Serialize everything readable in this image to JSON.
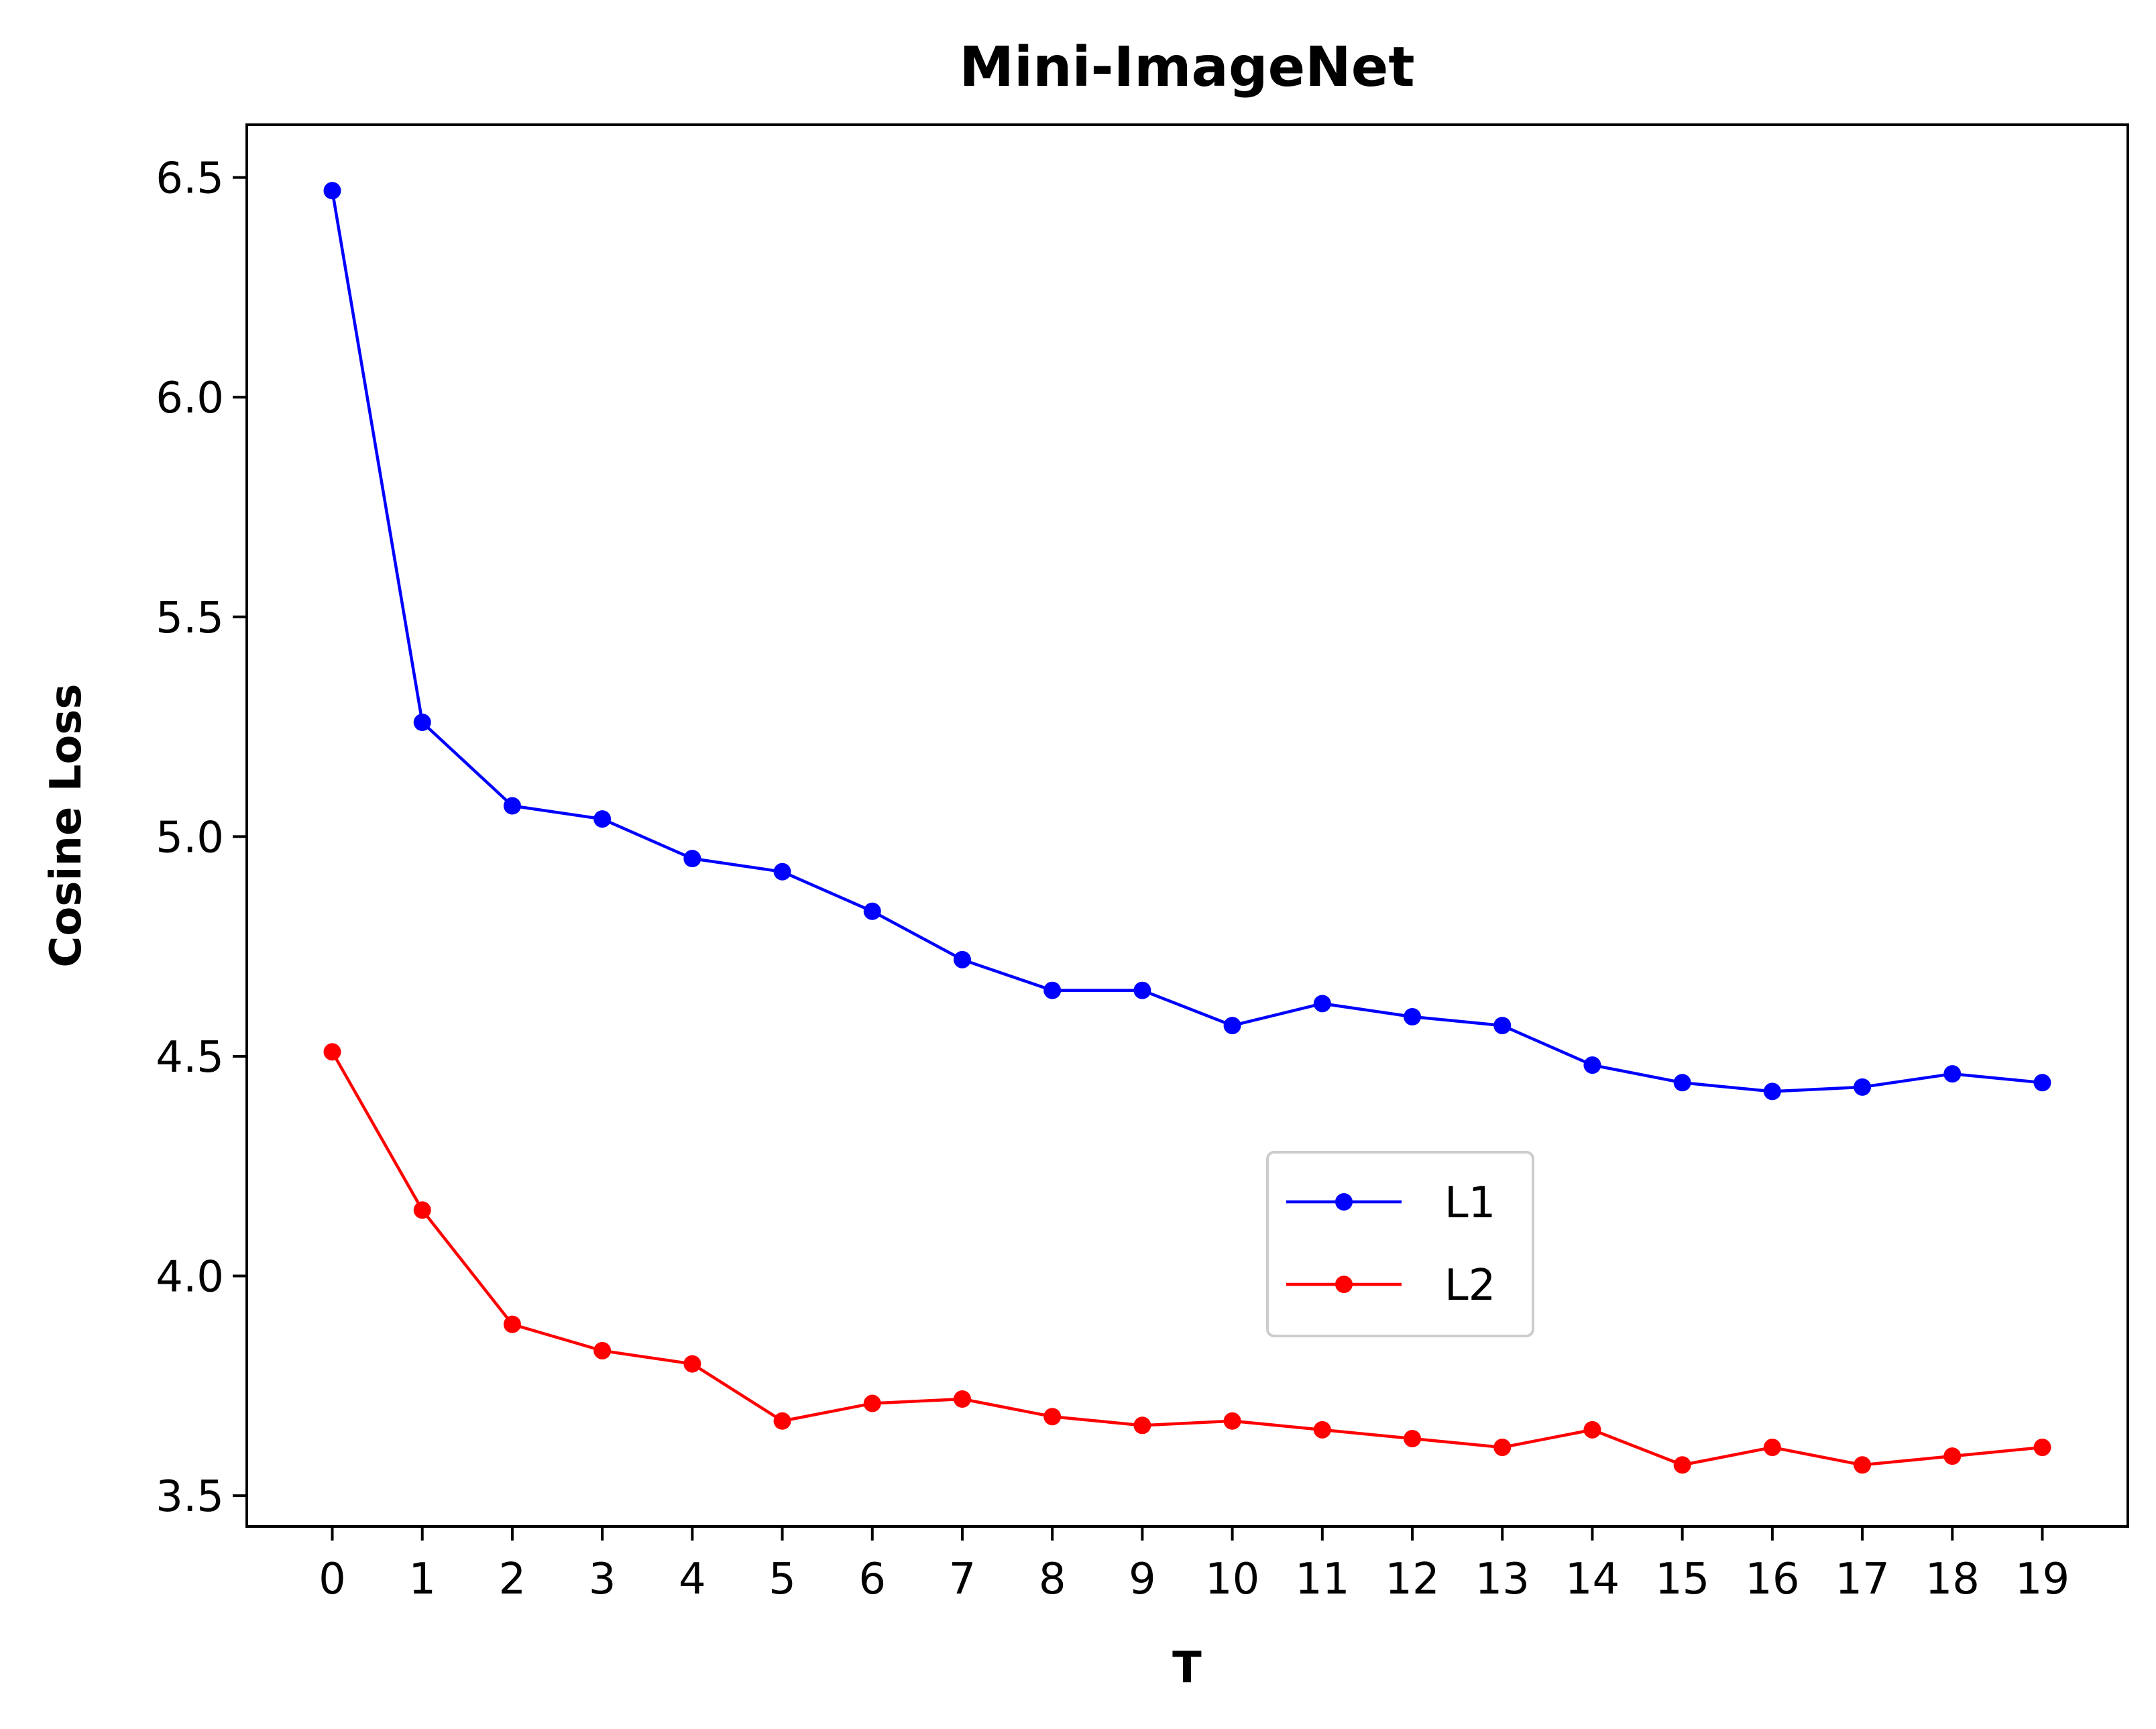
{
  "chart_data": {
    "type": "line",
    "title": "Mini-ImageNet",
    "xlabel": "T",
    "ylabel": "Cosine Loss",
    "x": [
      0,
      1,
      2,
      3,
      4,
      5,
      6,
      7,
      8,
      9,
      10,
      11,
      12,
      13,
      14,
      15,
      16,
      17,
      18,
      19
    ],
    "xlim": [
      -0.95,
      19.95
    ],
    "ylim": [
      3.43,
      6.62
    ],
    "yticks": [
      3.5,
      4.0,
      4.5,
      5.0,
      5.5,
      6.0,
      6.5
    ],
    "ytick_labels": [
      "3.5",
      "4.0",
      "4.5",
      "5.0",
      "5.5",
      "6.0",
      "6.5"
    ],
    "grid": false,
    "legend_position": "center-right",
    "series": [
      {
        "name": "L1",
        "color": "#0000ff",
        "marker": "circle",
        "values": [
          6.47,
          5.26,
          5.07,
          5.04,
          4.95,
          4.92,
          4.83,
          4.72,
          4.65,
          4.65,
          4.57,
          4.62,
          4.59,
          4.57,
          4.48,
          4.44,
          4.42,
          4.43,
          4.46,
          4.44
        ]
      },
      {
        "name": "L2",
        "color": "#ff0000",
        "marker": "circle",
        "values": [
          4.51,
          4.15,
          3.89,
          3.83,
          3.8,
          3.67,
          3.71,
          3.72,
          3.68,
          3.66,
          3.67,
          3.65,
          3.63,
          3.61,
          3.65,
          3.57,
          3.61,
          3.57,
          3.59,
          3.61
        ]
      }
    ]
  }
}
